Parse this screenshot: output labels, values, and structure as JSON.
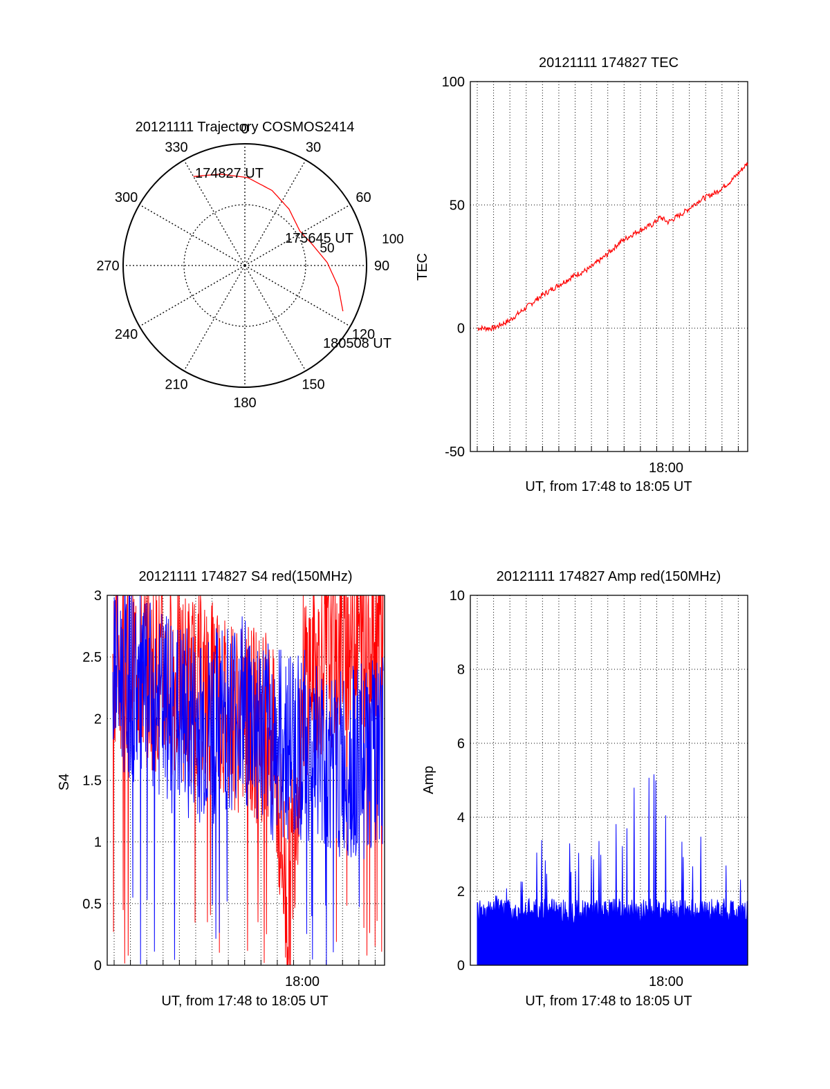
{
  "chart_data": [
    {
      "type": "polar",
      "title": "20121111 Trajectory COSMOS2414",
      "azimuth_labels": [
        "0",
        "30",
        "60",
        "90",
        "120",
        "150",
        "180",
        "210",
        "240",
        "270",
        "300",
        "330"
      ],
      "elevation_ring_labels": [
        "50",
        "100"
      ],
      "trajectory_color": "#ff0000",
      "trajectory": [
        {
          "az": 330,
          "el": 14
        },
        {
          "az": 345,
          "el": 20
        },
        {
          "az": 2,
          "el": 25
        },
        {
          "az": 20,
          "el": 31
        },
        {
          "az": 38,
          "el": 37
        },
        {
          "az": 58,
          "el": 42
        },
        {
          "az": 72,
          "el": 38
        },
        {
          "az": 88,
          "el": 29
        },
        {
          "az": 103,
          "el": 19
        },
        {
          "az": 115,
          "el": 10
        }
      ],
      "annotations": [
        {
          "text": "174827 UT",
          "az": 330,
          "el": 14
        },
        {
          "text": "175645 UT",
          "az": 71,
          "el": 40
        },
        {
          "text": "180508 UT",
          "az": 115,
          "el": 10
        }
      ]
    },
    {
      "type": "line",
      "title": "20121111 174827 TEC",
      "xlabel": "UT, from 17:48 to 18:05 UT",
      "ylabel": "TEC",
      "ylim": [
        -50,
        100
      ],
      "yticks": [
        "-50",
        "0",
        "50",
        "100"
      ],
      "xtick_labels": [
        "18:00"
      ],
      "grid": true,
      "series": [
        {
          "color": "#ff0000",
          "x": [
            "17:48",
            "17:49",
            "17:50",
            "17:51",
            "17:52",
            "17:53",
            "17:54",
            "17:55",
            "17:56",
            "17:57",
            "17:58",
            "17:59",
            "17:59:30",
            "18:00",
            "18:01",
            "18:02",
            "18:03",
            "18:04",
            "18:05"
          ],
          "values": [
            0,
            0,
            3,
            8,
            13,
            17,
            21,
            24,
            29,
            35,
            39,
            42,
            45,
            43,
            47,
            52,
            55,
            60,
            67
          ]
        }
      ]
    },
    {
      "type": "line",
      "title": "20121111 174827 S4 red(150MHz)",
      "xlabel": "UT, from 17:48 to 18:05 UT",
      "ylabel": "S4",
      "ylim": [
        0,
        3
      ],
      "yticks": [
        "0",
        "0.5",
        "1",
        "1.5",
        "2",
        "2.5",
        "3"
      ],
      "xtick_labels": [
        "18:00"
      ],
      "grid": true,
      "series": [
        {
          "color": "#ff0000",
          "x": [
            "17:48",
            "17:50",
            "17:52",
            "17:54",
            "17:56",
            "17:58",
            "17:59",
            "18:00",
            "18:02",
            "18:05"
          ],
          "values": [
            2.6,
            2.4,
            2.3,
            2.2,
            2.0,
            1.9,
            0.4,
            2.3,
            2.6,
            2.8
          ]
        },
        {
          "color": "#0000ff",
          "x": [
            "17:48",
            "17:50",
            "17:52",
            "17:54",
            "17:56",
            "17:58",
            "18:00",
            "18:02",
            "18:05"
          ],
          "values": [
            2.4,
            2.2,
            2.0,
            1.9,
            2.1,
            1.8,
            1.8,
            1.6,
            1.7
          ]
        }
      ]
    },
    {
      "type": "area",
      "title": "20121111 174827 Amp red(150MHz)",
      "xlabel": "UT, from 17:48 to 18:05 UT",
      "ylabel": "Amp",
      "ylim": [
        0,
        10
      ],
      "yticks": [
        "0",
        "2",
        "4",
        "6",
        "8",
        "10"
      ],
      "xtick_labels": [
        "18:00"
      ],
      "grid": true,
      "series": [
        {
          "color": "#0000ff",
          "x": [
            "17:48",
            "17:51",
            "17:52",
            "17:55",
            "17:59:40",
            "18:00",
            "18:03",
            "18:05"
          ],
          "values": [
            1.6,
            2.5,
            3.4,
            3.3,
            5.8,
            3.3,
            3.9,
            2.2
          ]
        }
      ]
    }
  ]
}
